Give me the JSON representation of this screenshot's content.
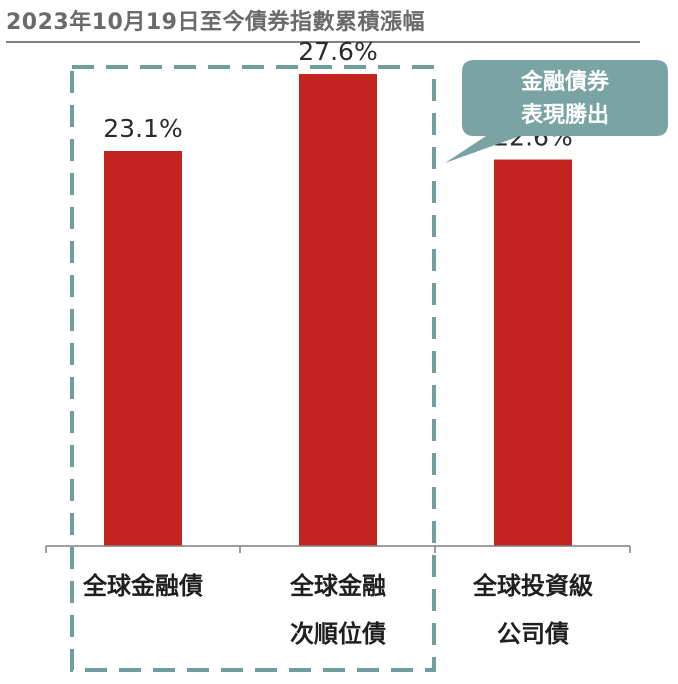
{
  "title": "2023年10月19日至今債券指數累積漲幅",
  "callout": {
    "line1": "金融債券",
    "line2": "表現勝出"
  },
  "colors": {
    "bar": "#c4241f",
    "title": "#6a6a6a",
    "callout": "#7aa3a3",
    "dash": "#6e9e9e"
  },
  "chart_data": {
    "type": "bar",
    "categories": [
      [
        "全球金融債"
      ],
      [
        "全球金融",
        "次順位債"
      ],
      [
        "全球投資級",
        "公司債"
      ]
    ],
    "values": [
      23.1,
      27.6,
      22.6
    ],
    "value_labels": [
      "23.1%",
      "27.6%",
      "22.6%"
    ],
    "unit": "%",
    "ylim": [
      0,
      30
    ],
    "grid": false,
    "legend": "none",
    "highlighted_categories": [
      0,
      1
    ]
  }
}
